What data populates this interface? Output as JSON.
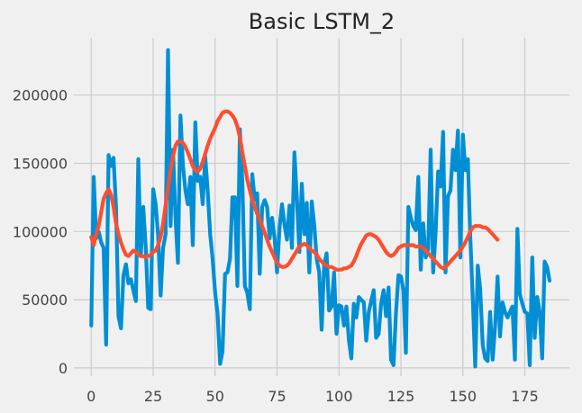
{
  "chart_data": {
    "type": "line",
    "title": "Basic LSTM_2",
    "xlabel": "",
    "ylabel": "",
    "xlim": [
      -7,
      193
    ],
    "ylim": [
      -6000,
      242000
    ],
    "xticks": [
      0,
      25,
      50,
      75,
      100,
      125,
      150,
      175
    ],
    "yticks": [
      0,
      50000,
      100000,
      150000,
      200000
    ],
    "grid": true,
    "legend": "none",
    "colors": {
      "background": "#f0f0f0",
      "grid": "#cbcbcb",
      "actual": "#008fd5",
      "predicted": "#fc4f30"
    },
    "series": [
      {
        "values": [
          31000,
          140000,
          95000,
          100000,
          92000,
          88000,
          17000,
          156000,
          148000,
          154000,
          118000,
          38000,
          29000,
          68000,
          76000,
          62000,
          65000,
          57000,
          49000,
          153000,
          82000,
          118000,
          88000,
          44000,
          43000,
          131000,
          120000,
          97000,
          53000,
          88000,
          98000,
          233000,
          104000,
          160000,
          110000,
          77000,
          185000,
          149000,
          130000,
          120000,
          140000,
          90000,
          180000,
          137000,
          140000,
          120000,
          155000,
          130000,
          98000,
          80000,
          55000,
          40000,
          3000,
          12000,
          69000,
          70000,
          80000,
          125000,
          125000,
          60000,
          175000,
          136000,
          60000,
          55000,
          43000,
          142000,
          123000,
          128000,
          69000,
          118000,
          123000,
          118000,
          95000,
          110000,
          95000,
          70000,
          103000,
          120000,
          105000,
          94000,
          119000,
          88000,
          158000,
          125000,
          85000,
          135000,
          98000,
          121000,
          70000,
          122000,
          105000,
          80000,
          70000,
          28000,
          75000,
          84000,
          42000,
          45000,
          70000,
          25000,
          46000,
          45000,
          31000,
          45000,
          20000,
          7000,
          47000,
          37000,
          52000,
          50000,
          48000,
          20000,
          41000,
          49000,
          57000,
          22000,
          25000,
          47000,
          57000,
          38000,
          59000,
          6000,
          2000,
          40000,
          68000,
          67000,
          57000,
          11000,
          118000,
          110000,
          104000,
          101000,
          140000,
          72000,
          106000,
          81000,
          87000,
          160000,
          70000,
          99000,
          144000,
          133000,
          173000,
          70000,
          126000,
          130000,
          160000,
          145000,
          174000,
          81000,
          171000,
          145000,
          153000,
          96000,
          50000,
          1000,
          75000,
          58000,
          17000,
          7000,
          5000,
          41000,
          6000,
          30000,
          67000,
          23000,
          48000,
          41000,
          37000,
          41000,
          45000,
          6000,
          102000,
          54000,
          47000,
          41000,
          40000,
          2000,
          81000,
          22000,
          52000,
          41000,
          7000,
          78000,
          74000,
          64000
        ]
      },
      {
        "values": [
          96000,
          90000,
          98000,
          104000,
          114000,
          124000,
          128000,
          131000,
          127000,
          118000,
          106000,
          98000,
          92000,
          87000,
          83000,
          82000,
          84000,
          86000,
          85000,
          83000,
          82000,
          82000,
          81000,
          82000,
          83000,
          85000,
          86000,
          90000,
          96000,
          106000,
          119000,
          132000,
          145000,
          155000,
          163000,
          166000,
          166000,
          165000,
          162000,
          158000,
          153000,
          148000,
          145000,
          144000,
          146000,
          151000,
          157000,
          163000,
          168000,
          172000,
          176000,
          181000,
          184000,
          187000,
          188000,
          188000,
          187000,
          185000,
          182000,
          177000,
          169000,
          158000,
          148000,
          138000,
          130000,
          123000,
          118000,
          113000,
          109000,
          104000,
          99000,
          94000,
          89000,
          85000,
          81000,
          77000,
          75000,
          74000,
          74000,
          75000,
          77000,
          80000,
          83000,
          86000,
          89000,
          90000,
          91000,
          90000,
          88000,
          86000,
          85000,
          83000,
          80000,
          78000,
          76000,
          75000,
          74000,
          74000,
          73000,
          72000,
          72000,
          72000,
          73000,
          73000,
          74000,
          75000,
          78000,
          82000,
          87000,
          91000,
          94000,
          97000,
          98000,
          98000,
          97000,
          96000,
          94000,
          91000,
          88000,
          85000,
          83000,
          82000,
          83000,
          85000,
          88000,
          89000,
          90000,
          90000,
          90000,
          90000,
          90000,
          89000,
          89000,
          89000,
          88000,
          86000,
          84000,
          82000,
          80000,
          78000,
          76000,
          74000,
          73000,
          74000,
          76000,
          78000,
          80000,
          82000,
          84000,
          86000,
          89000,
          92000,
          96000,
          100000,
          103000,
          104000,
          104000,
          104000,
          103000,
          103000,
          102000,
          100000,
          98000,
          96000,
          94000
        ]
      }
    ]
  }
}
